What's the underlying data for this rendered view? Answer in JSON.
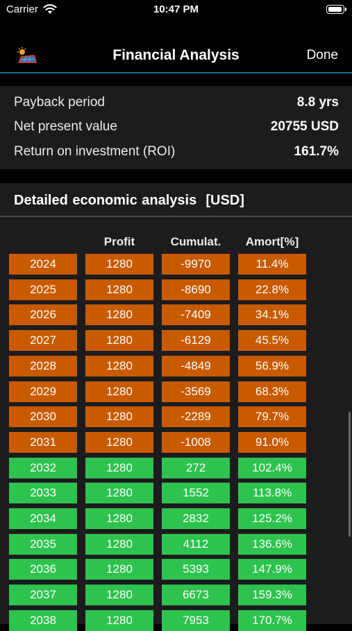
{
  "status_bar": {
    "carrier": "Carrier",
    "time": "10:47 PM",
    "battery_level": 1.0
  },
  "nav": {
    "title": "Financial Analysis",
    "done_label": "Done"
  },
  "summary": {
    "rows": [
      {
        "label": "Payback period",
        "value": "8.8 yrs"
      },
      {
        "label": "Net present value",
        "value": "20755 USD"
      },
      {
        "label": "Return on investment (ROI)",
        "value": "161.7%"
      }
    ]
  },
  "analysis": {
    "title": "Detailed economic analysis  [USD]",
    "headers": [
      "",
      "Profit",
      "Cumulat.",
      "Amort[%]"
    ],
    "colors": {
      "negative": "#c85a00",
      "positive": "#2ec24f"
    },
    "rows": [
      {
        "year": "2024",
        "profit": "1280",
        "cumulative": "-9970",
        "amort": "11.4%",
        "status": "negative"
      },
      {
        "year": "2025",
        "profit": "1280",
        "cumulative": "-8690",
        "amort": "22.8%",
        "status": "negative"
      },
      {
        "year": "2026",
        "profit": "1280",
        "cumulative": "-7409",
        "amort": "34.1%",
        "status": "negative"
      },
      {
        "year": "2027",
        "profit": "1280",
        "cumulative": "-6129",
        "amort": "45.5%",
        "status": "negative"
      },
      {
        "year": "2028",
        "profit": "1280",
        "cumulative": "-4849",
        "amort": "56.9%",
        "status": "negative"
      },
      {
        "year": "2029",
        "profit": "1280",
        "cumulative": "-3569",
        "amort": "68.3%",
        "status": "negative"
      },
      {
        "year": "2030",
        "profit": "1280",
        "cumulative": "-2289",
        "amort": "79.7%",
        "status": "negative"
      },
      {
        "year": "2031",
        "profit": "1280",
        "cumulative": "-1008",
        "amort": "91.0%",
        "status": "negative"
      },
      {
        "year": "2032",
        "profit": "1280",
        "cumulative": "272",
        "amort": "102.4%",
        "status": "positive"
      },
      {
        "year": "2033",
        "profit": "1280",
        "cumulative": "1552",
        "amort": "113.8%",
        "status": "positive"
      },
      {
        "year": "2034",
        "profit": "1280",
        "cumulative": "2832",
        "amort": "125.2%",
        "status": "positive"
      },
      {
        "year": "2035",
        "profit": "1280",
        "cumulative": "4112",
        "amort": "136.6%",
        "status": "positive"
      },
      {
        "year": "2036",
        "profit": "1280",
        "cumulative": "5393",
        "amort": "147.9%",
        "status": "positive"
      },
      {
        "year": "2037",
        "profit": "1280",
        "cumulative": "6673",
        "amort": "159.3%",
        "status": "positive"
      },
      {
        "year": "2038",
        "profit": "1280",
        "cumulative": "7953",
        "amort": "170.7%",
        "status": "positive"
      }
    ]
  }
}
